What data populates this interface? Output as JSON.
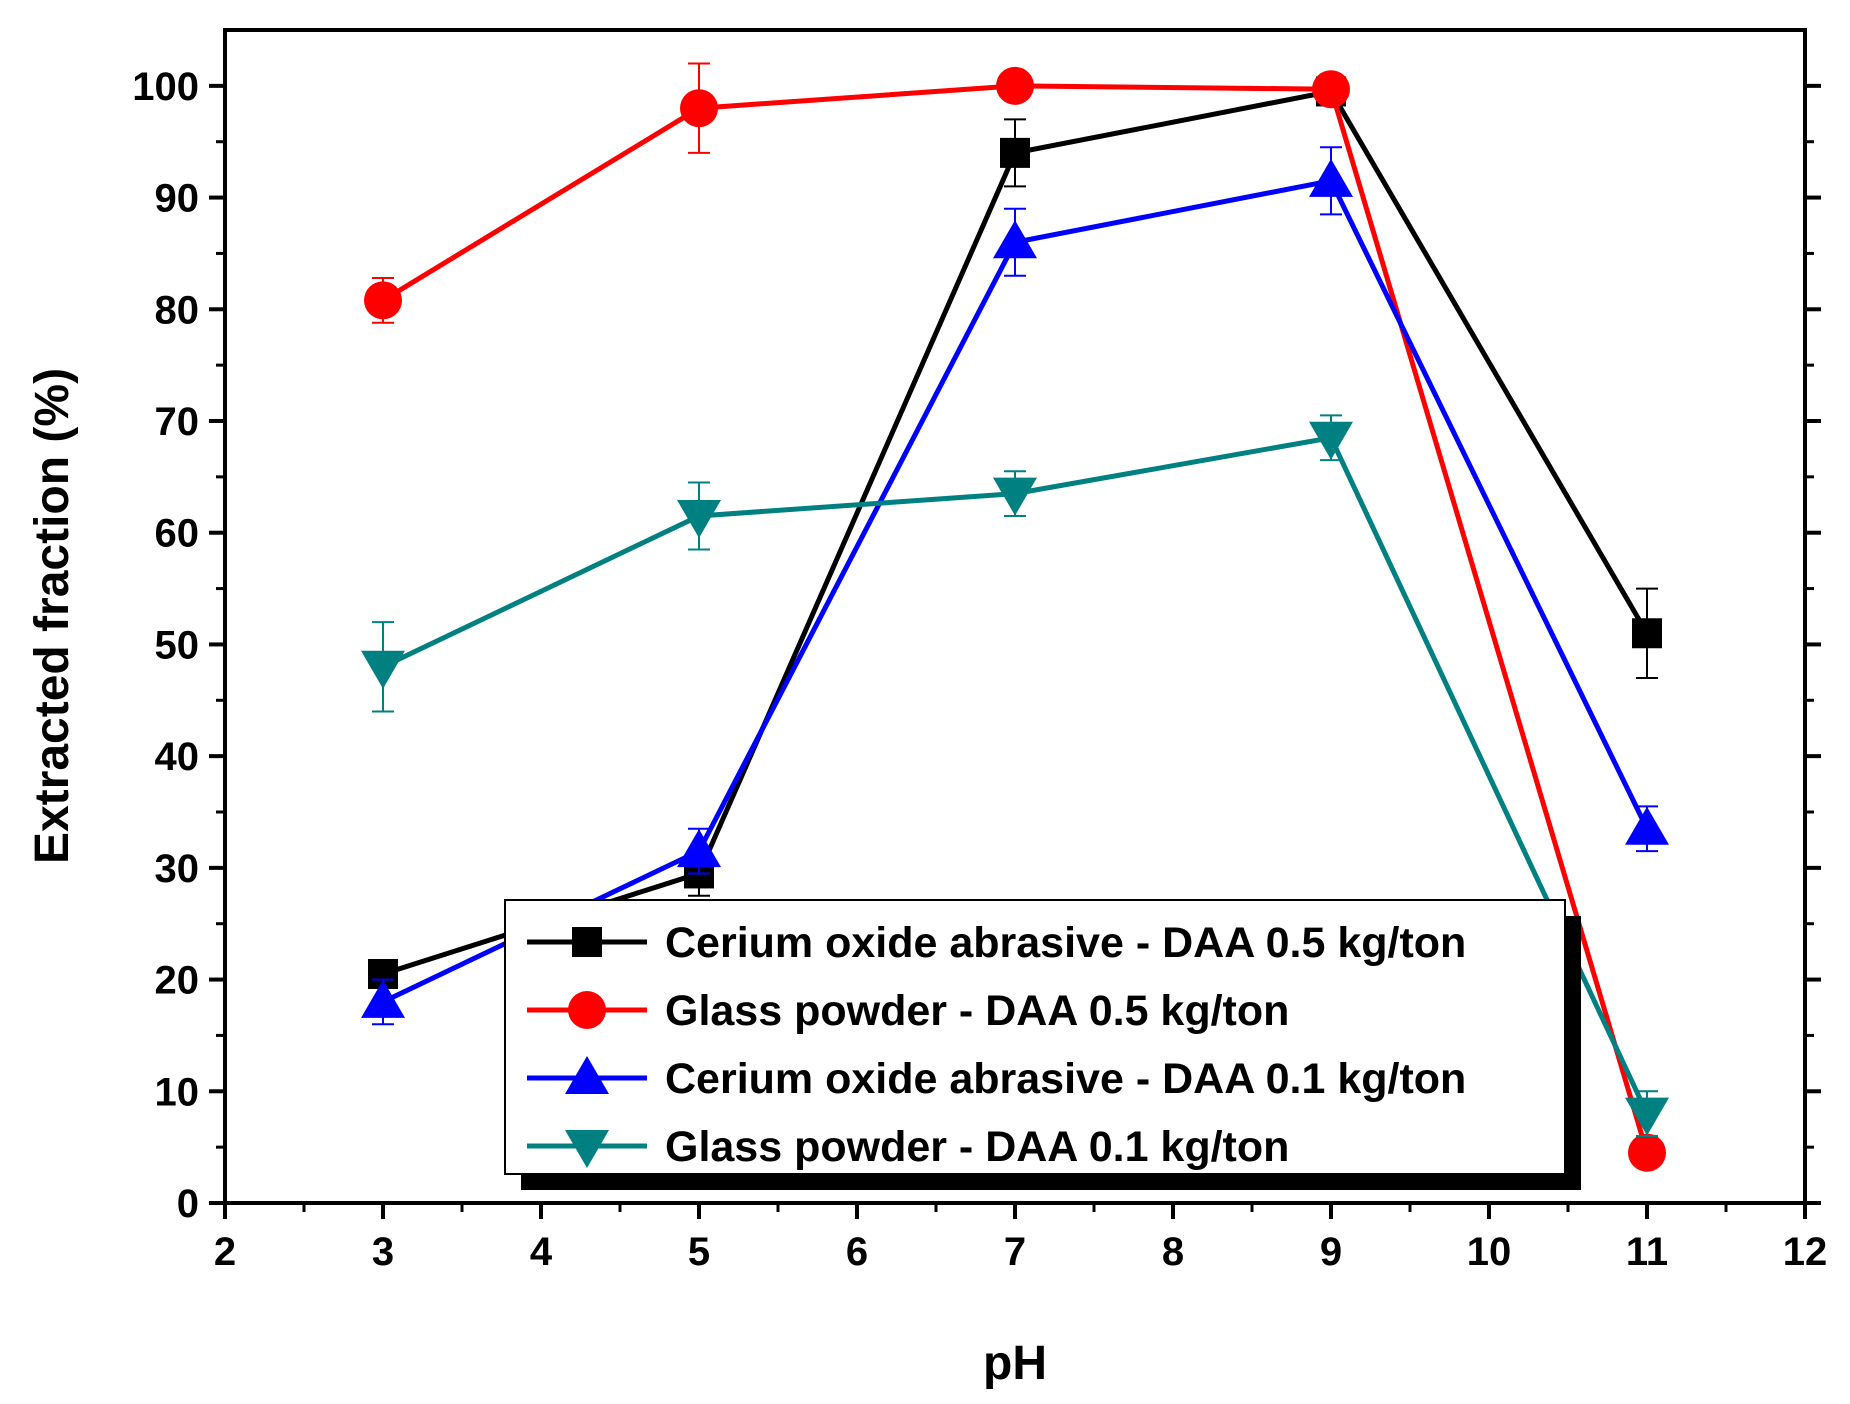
{
  "chart_data": {
    "type": "line",
    "title": "",
    "xlabel": "pH",
    "ylabel": "Extracted fraction (%)",
    "xlim": [
      2,
      12
    ],
    "ylim": [
      0,
      105
    ],
    "xticks": [
      2,
      3,
      4,
      5,
      6,
      7,
      8,
      9,
      10,
      11,
      12
    ],
    "yticks": [
      0,
      10,
      20,
      30,
      40,
      50,
      60,
      70,
      80,
      90,
      100
    ],
    "grid": false,
    "legend_position": "bottom-center",
    "series": [
      {
        "name": "Cerium oxide abrasive - DAA 0.5 kg/ton",
        "color": "#000000",
        "marker": "square",
        "x": [
          3,
          5,
          7,
          9,
          11
        ],
        "values": [
          20.5,
          29.5,
          94,
          99.5,
          51
        ],
        "errors": [
          1,
          2,
          3,
          0.5,
          4
        ]
      },
      {
        "name": "Glass powder - DAA 0.5 kg/ton",
        "color": "#ff0000",
        "marker": "circle",
        "x": [
          3,
          5,
          7,
          9,
          11
        ],
        "values": [
          80.8,
          98,
          100,
          99.7,
          4.5
        ],
        "errors": [
          2,
          4,
          0,
          0.3,
          0.5
        ]
      },
      {
        "name": "Cerium oxide abrasive - DAA 0.1 kg/ton",
        "color": "#0000ff",
        "marker": "triangle-up",
        "x": [
          3,
          5,
          7,
          9,
          11
        ],
        "values": [
          18,
          31.5,
          86,
          91.5,
          33.5
        ],
        "errors": [
          2,
          2,
          3,
          3,
          2
        ]
      },
      {
        "name": "Glass powder - DAA 0.1 kg/ton",
        "color": "#008080",
        "marker": "triangle-down",
        "x": [
          3,
          5,
          7,
          9,
          11
        ],
        "values": [
          48,
          61.5,
          63.5,
          68.5,
          8
        ],
        "errors": [
          4,
          3,
          2,
          2,
          2
        ]
      }
    ]
  }
}
